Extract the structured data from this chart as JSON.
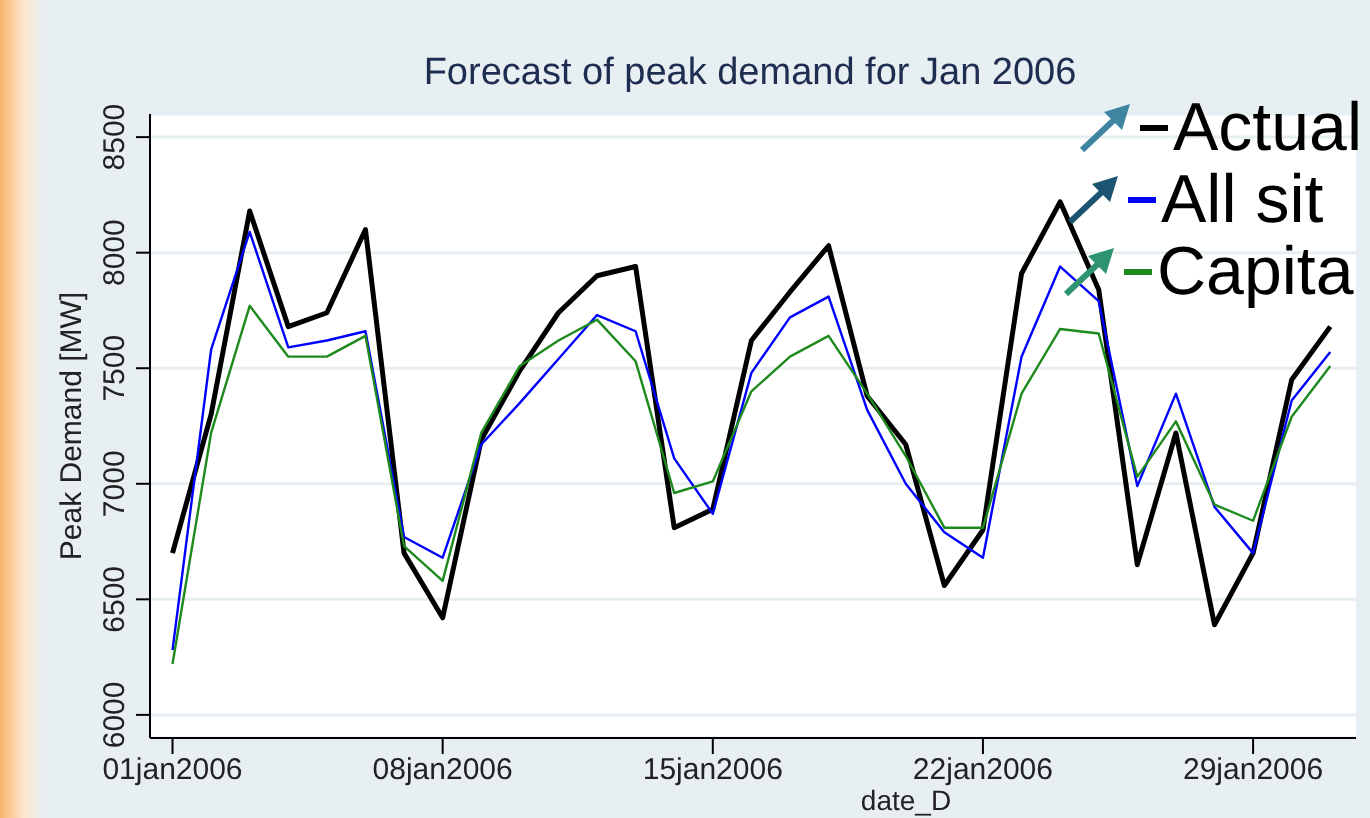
{
  "chart_data": {
    "type": "line",
    "title": "Forecast of peak demand for Jan 2006",
    "xlabel": "date_D",
    "ylabel": "Peak Demand [MW]",
    "x": [
      "2006-01-01",
      "2006-01-02",
      "2006-01-03",
      "2006-01-04",
      "2006-01-05",
      "2006-01-06",
      "2006-01-07",
      "2006-01-08",
      "2006-01-09",
      "2006-01-10",
      "2006-01-11",
      "2006-01-12",
      "2006-01-13",
      "2006-01-14",
      "2006-01-15",
      "2006-01-16",
      "2006-01-17",
      "2006-01-18",
      "2006-01-19",
      "2006-01-20",
      "2006-01-21",
      "2006-01-22",
      "2006-01-23",
      "2006-01-24",
      "2006-01-25",
      "2006-01-26",
      "2006-01-27",
      "2006-01-28",
      "2006-01-29",
      "2006-01-30",
      "2006-01-31"
    ],
    "series": [
      {
        "name": "Actual",
        "color": "#000000",
        "values": [
          6700,
          7300,
          8180,
          7680,
          7740,
          8100,
          6700,
          6420,
          7190,
          7490,
          7740,
          7900,
          7940,
          6810,
          6890,
          7620,
          7830,
          8030,
          7380,
          7170,
          6560,
          6800,
          7910,
          8220,
          7840,
          6650,
          7220,
          6390,
          6700,
          7450,
          7680
        ]
      },
      {
        "name": "All sit",
        "color": "#0000ff",
        "values": [
          6280,
          7580,
          8090,
          7590,
          7620,
          7660,
          6770,
          6680,
          7170,
          7350,
          7540,
          7730,
          7660,
          7110,
          6870,
          7480,
          7720,
          7810,
          7320,
          7000,
          6790,
          6680,
          7550,
          7940,
          7790,
          6990,
          7390,
          6900,
          6700,
          7360,
          7570
        ]
      },
      {
        "name": "Capita",
        "color": "#1e8a1e",
        "values": [
          6220,
          7220,
          7770,
          7550,
          7550,
          7640,
          6730,
          6580,
          7220,
          7510,
          7620,
          7710,
          7530,
          6960,
          7010,
          7400,
          7550,
          7640,
          7390,
          7120,
          6810,
          6810,
          7390,
          7670,
          7650,
          7030,
          7270,
          6910,
          6840,
          7290,
          7510
        ]
      }
    ],
    "xlim": [
      "2005-12-31T10:00",
      "2006-01-31T16:00"
    ],
    "xticks": [
      {
        "value": "2006-01-01",
        "label": "01jan2006"
      },
      {
        "value": "2006-01-08",
        "label": "08jan2006"
      },
      {
        "value": "2006-01-15",
        "label": "15jan2006"
      },
      {
        "value": "2006-01-22",
        "label": "22jan2006"
      },
      {
        "value": "2006-01-29",
        "label": "29jan2006"
      }
    ],
    "ylim": [
      5900,
      8600
    ],
    "yticks": [
      6000,
      6500,
      7000,
      7500,
      8000,
      8500
    ],
    "grid": "y",
    "legend": "top right",
    "marker": "none",
    "line_style": "solid"
  }
}
